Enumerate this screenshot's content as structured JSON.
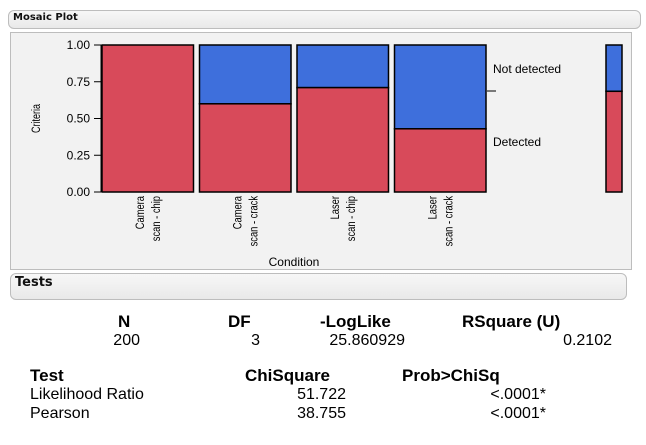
{
  "mosaic_header": {
    "title": "Mosaic Plot"
  },
  "tests_header": {
    "title": "Tests"
  },
  "colors": {
    "detected": "#d84a5a",
    "not_detected": "#3e6fdc",
    "bar_edge": "#000000"
  },
  "chart_data": {
    "type": "mosaic",
    "xlabel": "Condition",
    "ylabel": "Criteria",
    "ylim": [
      0,
      1
    ],
    "yticks": [
      "0.00",
      "0.25",
      "0.50",
      "0.75",
      "1.00"
    ],
    "categories": [
      {
        "line1": "Camera",
        "line2": "scan - chip"
      },
      {
        "line1": "Camera",
        "line2": "scan - crack"
      },
      {
        "line1": "Laser",
        "line2": "scan - chip"
      },
      {
        "line1": "Laser",
        "line2": "scan - crack"
      }
    ],
    "series": [
      {
        "name": "Detected",
        "values": [
          1.0,
          0.6,
          0.71,
          0.43
        ]
      },
      {
        "name": "Not detected",
        "values": [
          0.0,
          0.4,
          0.29,
          0.57
        ]
      }
    ],
    "side_labels": {
      "not_detected": "Not detected",
      "detected": "Detected"
    },
    "marginal_detected": 0.685,
    "grid": false
  },
  "summary": {
    "headers": {
      "n": "N",
      "df": "DF",
      "loglike": "-LogLike",
      "rsquare": "RSquare (U)"
    },
    "values": {
      "n": "200",
      "df": "3",
      "loglike": "25.860929",
      "rsquare": "0.2102"
    }
  },
  "tests_table": {
    "headers": {
      "test": "Test",
      "chisq": "ChiSquare",
      "prob": "Prob>ChiSq"
    },
    "rows": [
      {
        "test": "Likelihood Ratio",
        "chisq": "51.722",
        "prob": "<.0001*"
      },
      {
        "test": "Pearson",
        "chisq": "38.755",
        "prob": "<.0001*"
      }
    ]
  }
}
